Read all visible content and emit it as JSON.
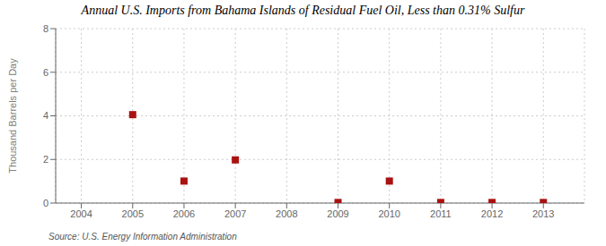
{
  "chart_data": {
    "type": "scatter",
    "title": "Annual U.S. Imports from Bahama Islands of Residual Fuel Oil, Less than 0.31% Sulfur",
    "ylabel": "Thousand Barrels per Day",
    "source": "Source: U.S. Energy Information Administration",
    "x": [
      2005,
      2006,
      2007,
      2009,
      2010,
      2011,
      2012,
      2013
    ],
    "values": [
      4.055,
      1.008,
      1.979,
      0.027,
      1.008,
      0.027,
      0.027,
      0.027
    ],
    "color": "#aa1111",
    "marker": "square",
    "xlim": [
      2003.5,
      2013.8
    ],
    "xticks": [
      2004,
      2005,
      2006,
      2007,
      2008,
      2009,
      2010,
      2011,
      2012,
      2013
    ],
    "ylim": [
      0,
      8
    ],
    "yticks": [
      0,
      2,
      4,
      6,
      8
    ],
    "grid": true
  }
}
